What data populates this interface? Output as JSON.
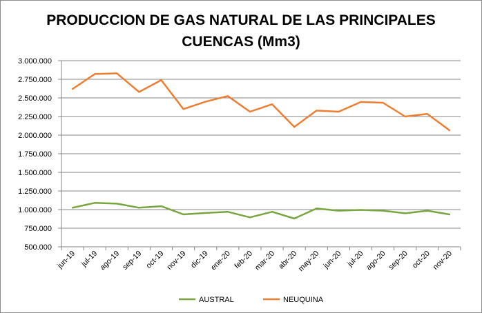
{
  "chart_data": {
    "type": "line",
    "title_line1": "PRODUCCION DE GAS NATURAL DE LAS PRINCIPALES",
    "title_line2": "CUENCAS (Mm3)",
    "xlabel": "",
    "ylabel": "",
    "categories": [
      "jun-19",
      "jul-19",
      "ago-19",
      "sep-19",
      "oct-19",
      "nov-19",
      "dic-19",
      "ene-20",
      "feb-20",
      "mar-20",
      "abr-20",
      "may-20",
      "jun-20",
      "jul-20",
      "ago-20",
      "sep-20",
      "oct-20",
      "nov-20"
    ],
    "ylim": [
      500000,
      3000000
    ],
    "yticks": [
      500000,
      750000,
      1000000,
      1250000,
      1500000,
      1750000,
      2000000,
      2250000,
      2500000,
      2750000,
      3000000
    ],
    "ytick_labels": [
      "500.000",
      "750.000",
      "1.000.000",
      "1.250.000",
      "1.500.000",
      "1.750.000",
      "2.000.000",
      "2.250.000",
      "2.500.000",
      "2.750.000",
      "3.000.000"
    ],
    "grid": "horizontal",
    "legend_position": "bottom",
    "series": [
      {
        "name": "AUSTRAL",
        "color": "#77a53e",
        "values": [
          1025000,
          1090000,
          1080000,
          1025000,
          1045000,
          935000,
          955000,
          970000,
          895000,
          970000,
          880000,
          1015000,
          985000,
          995000,
          985000,
          950000,
          985000,
          935000
        ]
      },
      {
        "name": "NEUQUINA",
        "color": "#ed7d31",
        "values": [
          2620000,
          2820000,
          2830000,
          2580000,
          2740000,
          2350000,
          2450000,
          2525000,
          2315000,
          2415000,
          2110000,
          2330000,
          2315000,
          2445000,
          2435000,
          2250000,
          2285000,
          2065000
        ]
      }
    ]
  }
}
